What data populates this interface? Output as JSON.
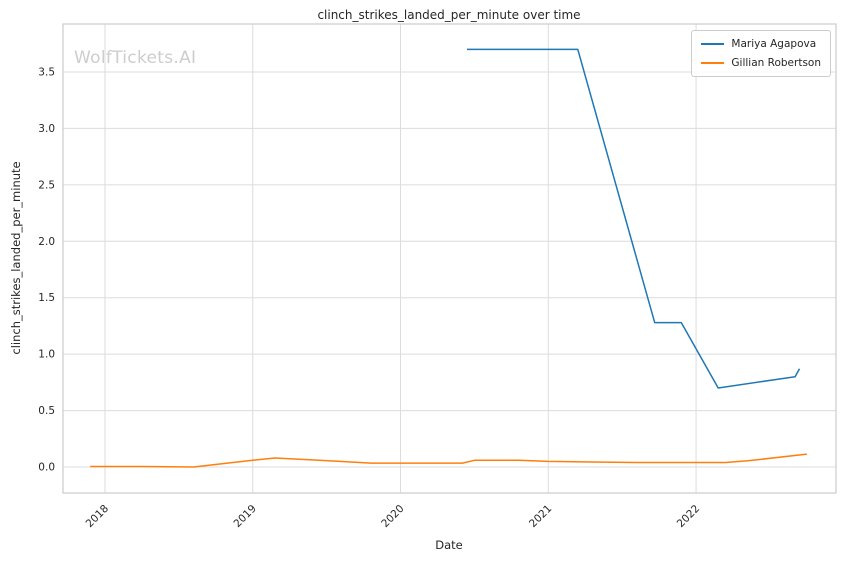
{
  "watermark": "WolfTickets.AI",
  "colors": {
    "background": "#ffffff",
    "grid": "#dcdcdc",
    "spine": "#cccccc",
    "text": "#262626",
    "watermark": "#cdcdcd"
  },
  "chart_data": {
    "type": "line",
    "title": "clinch_strikes_landed_per_minute over time",
    "xlabel": "Date",
    "ylabel": "clinch_strikes_landed_per_minute",
    "xlim": [
      2017.716,
      2022.947
    ],
    "ylim": [
      -0.23,
      3.925
    ],
    "grid": true,
    "legend_position": "upper right",
    "xticks": [
      {
        "value": 2018,
        "label": "2018"
      },
      {
        "value": 2019,
        "label": "2019"
      },
      {
        "value": 2020,
        "label": "2020"
      },
      {
        "value": 2021,
        "label": "2021"
      },
      {
        "value": 2022,
        "label": "2022"
      }
    ],
    "yticks": [
      {
        "value": 0.0,
        "label": "0.0"
      },
      {
        "value": 0.5,
        "label": "0.5"
      },
      {
        "value": 1.0,
        "label": "1.0"
      },
      {
        "value": 1.5,
        "label": "1.5"
      },
      {
        "value": 2.0,
        "label": "2.0"
      },
      {
        "value": 2.5,
        "label": "2.5"
      },
      {
        "value": 3.0,
        "label": "3.0"
      },
      {
        "value": 3.5,
        "label": "3.5"
      }
    ],
    "series": [
      {
        "name": "Mariya Agapova",
        "color": "#1f77b4",
        "points": [
          [
            2020.45,
            3.7
          ],
          [
            2021.2,
            3.7
          ],
          [
            2021.72,
            1.28
          ],
          [
            2021.9,
            1.28
          ],
          [
            2022.15,
            0.7
          ],
          [
            2022.67,
            0.8
          ],
          [
            2022.7,
            0.87
          ]
        ]
      },
      {
        "name": "Gillian Robertson",
        "color": "#ff7f0e",
        "points": [
          [
            2017.9,
            0.005
          ],
          [
            2018.25,
            0.005
          ],
          [
            2018.6,
            0.0
          ],
          [
            2019.0,
            0.06
          ],
          [
            2019.15,
            0.08
          ],
          [
            2019.45,
            0.06
          ],
          [
            2019.8,
            0.035
          ],
          [
            2020.15,
            0.035
          ],
          [
            2020.42,
            0.035
          ],
          [
            2020.5,
            0.06
          ],
          [
            2020.8,
            0.06
          ],
          [
            2021.0,
            0.05
          ],
          [
            2021.3,
            0.045
          ],
          [
            2021.6,
            0.04
          ],
          [
            2021.95,
            0.04
          ],
          [
            2022.2,
            0.04
          ],
          [
            2022.35,
            0.055
          ],
          [
            2022.75,
            0.115
          ]
        ]
      }
    ]
  }
}
